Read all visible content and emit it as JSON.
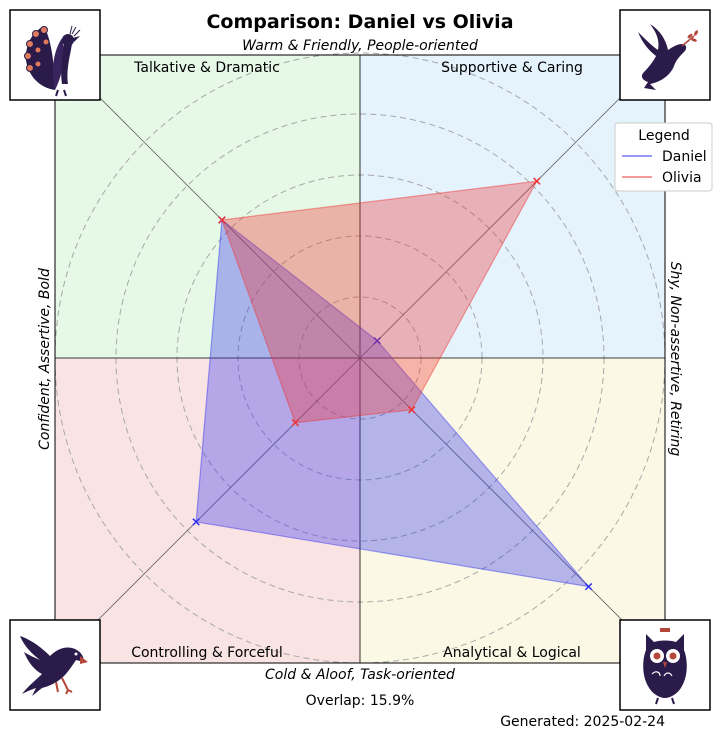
{
  "chart_data": {
    "type": "radar",
    "title": "Comparison: Daniel vs Olivia",
    "axis_labels": {
      "top": "Warm & Friendly, People-oriented",
      "bottom": "Cold & Aloof, Task-oriented",
      "left": "Confident, Assertive, Bold",
      "right": "Shy, Non-assertive, Retiring"
    },
    "quadrant_labels": {
      "top_left": "Talkative & Dramatic",
      "top_right": "Supportive & Caring",
      "bottom_left": "Controlling & Forceful",
      "bottom_right": "Analytical & Logical"
    },
    "quadrant_colors": {
      "top_left": "#e6f8e6",
      "top_right": "#e5f3fd",
      "bottom_left": "#f9e3e3",
      "bottom_right": "#fbf9e6"
    },
    "quadrant_icons": {
      "top_left": "peacock-icon",
      "top_right": "dove-icon",
      "bottom_left": "eagle-icon",
      "bottom_right": "owl-icon"
    },
    "axes_order": [
      "Supportive & Caring",
      "Talkative & Dramatic",
      "Controlling & Forceful",
      "Analytical & Logical"
    ],
    "radial_max": 5,
    "rings": [
      1,
      2,
      3,
      4,
      5
    ],
    "series": [
      {
        "name": "Daniel",
        "color": "#3333ee",
        "values": [
          0.4,
          3.2,
          3.8,
          5.3
        ]
      },
      {
        "name": "Olivia",
        "color": "#ee3333",
        "values": [
          4.1,
          3.2,
          1.5,
          1.2
        ]
      }
    ],
    "legend": {
      "title": "Legend",
      "placement": "top-right"
    },
    "overlap_text": "Overlap: 15.9%",
    "generated_text": "Generated: 2025-02-24"
  }
}
